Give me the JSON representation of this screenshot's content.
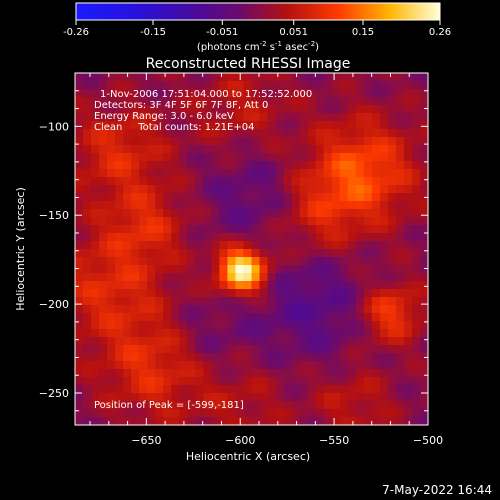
{
  "colorbar": {
    "ticks": [
      {
        "value": -0.26,
        "label": "-0.26"
      },
      {
        "value": -0.15,
        "label": "-0.15"
      },
      {
        "value": -0.051,
        "label": "-0.051"
      },
      {
        "value": 0.051,
        "label": "0.051"
      },
      {
        "value": 0.15,
        "label": "0.15"
      },
      {
        "value": 0.26,
        "label": "0.26"
      }
    ],
    "range": [
      -0.26,
      0.26
    ],
    "unit_label": {
      "prefix": "(photons cm",
      "sup1": "-2",
      "mid1": " s",
      "sup2": "-1",
      "mid2": " asec",
      "sup3": "-2",
      "suffix": ")"
    }
  },
  "chart_data": {
    "type": "heatmap",
    "title": "Reconstructed RHESSI Image",
    "xlabel": "Heliocentric X (arcsec)",
    "ylabel": "Heliocentric Y (arcsec)",
    "xlim": [
      -688,
      -500
    ],
    "ylim": [
      -268,
      -70
    ],
    "xticks": [
      -650,
      -600,
      -550,
      -500
    ],
    "xtick_labels": [
      "−650",
      "−600",
      "−550",
      "−500"
    ],
    "yticks": [
      -100,
      -150,
      -200,
      -250
    ],
    "ytick_labels": [
      "−100",
      "−150",
      "−200",
      "−250"
    ],
    "annotations": [
      "1-Nov-2006 17:51:04.000 to 17:52:52.000",
      "Detectors: 3F 4F 5F 6F 7F 8F, Att 0",
      "Energy Range: 3.0 - 6.0 keV",
      "Clean     Total counts: 1.21E+04"
    ],
    "peak_label": "Position of Peak = [-599,-181]",
    "peak": {
      "x": -599,
      "y": -181,
      "value": 0.26
    },
    "sources": [
      {
        "x": -599,
        "y": -181,
        "value": 0.26,
        "sigma": 9
      },
      {
        "x": -535,
        "y": -125,
        "value": 0.12,
        "sigma": 20
      },
      {
        "x": -560,
        "y": -150,
        "value": 0.07,
        "sigma": 18
      },
      {
        "x": -520,
        "y": -205,
        "value": 0.11,
        "sigma": 12
      },
      {
        "x": -665,
        "y": -115,
        "value": 0.08,
        "sigma": 18
      },
      {
        "x": -650,
        "y": -155,
        "value": 0.07,
        "sigma": 15
      },
      {
        "x": -670,
        "y": -190,
        "value": 0.08,
        "sigma": 22
      },
      {
        "x": -645,
        "y": -235,
        "value": 0.09,
        "sigma": 20
      },
      {
        "x": -600,
        "y": -90,
        "value": 0.05,
        "sigma": 18
      },
      {
        "x": -540,
        "y": -255,
        "value": 0.05,
        "sigma": 15
      },
      {
        "x": -600,
        "y": -255,
        "value": 0.04,
        "sigma": 18
      },
      {
        "x": -590,
        "y": -140,
        "value": -0.05,
        "sigma": 20
      },
      {
        "x": -560,
        "y": -200,
        "value": -0.06,
        "sigma": 22
      },
      {
        "x": -620,
        "y": -220,
        "value": -0.04,
        "sigma": 18
      }
    ]
  },
  "footer": {
    "date": "7-May-2022 16:44"
  }
}
